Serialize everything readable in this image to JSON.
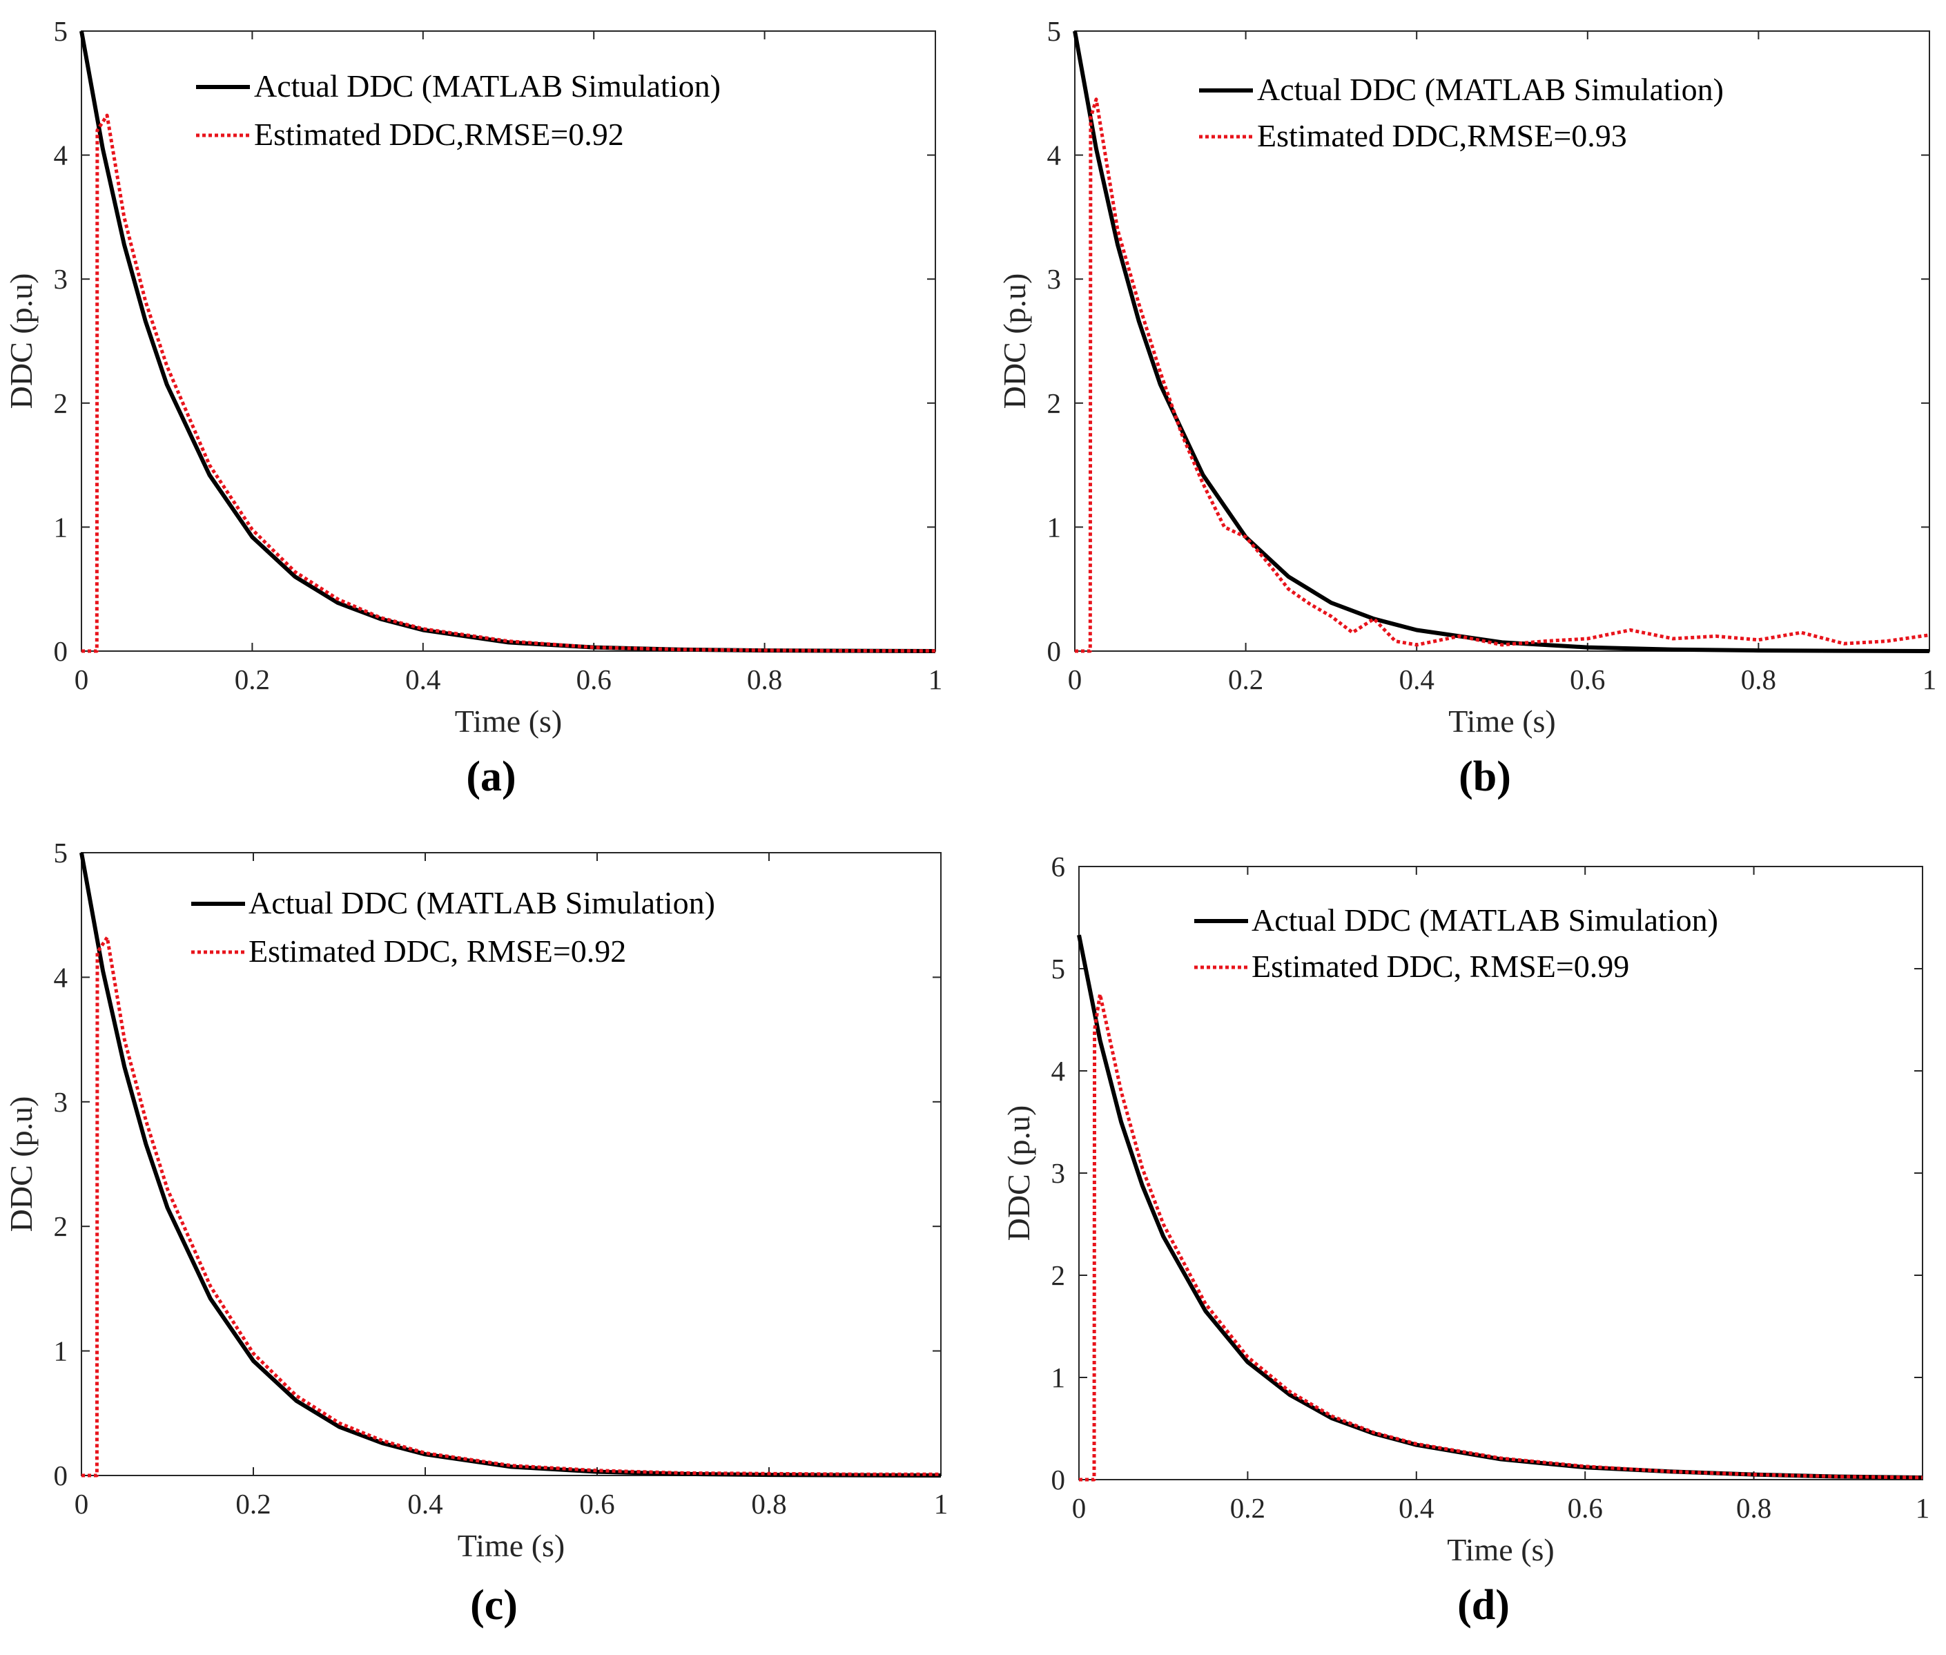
{
  "chart_data": [
    {
      "panel": "(a)",
      "type": "line",
      "title": "",
      "xlabel": "Time (s)",
      "ylabel": "DDC (p.u)",
      "xlim": [
        0,
        1
      ],
      "ylim": [
        0,
        5
      ],
      "xticks": [
        "0",
        "0.2",
        "0.4",
        "0.6",
        "0.8",
        "1"
      ],
      "yticks": [
        "0",
        "1",
        "2",
        "3",
        "4",
        "5"
      ],
      "legend_position": "top-right",
      "series": [
        {
          "name": "Actual DDC (MATLAB Simulation)",
          "style": "solid",
          "color": "#000000",
          "x": [
            0,
            0.025,
            0.05,
            0.075,
            0.1,
            0.15,
            0.2,
            0.25,
            0.3,
            0.35,
            0.4,
            0.5,
            0.6,
            0.7,
            0.8,
            0.9,
            1.0
          ],
          "y": [
            5.0,
            4.05,
            3.28,
            2.66,
            2.15,
            1.42,
            0.92,
            0.6,
            0.39,
            0.26,
            0.17,
            0.07,
            0.03,
            0.012,
            0.005,
            0.002,
            0.0
          ]
        },
        {
          "name": "Estimated DDC,RMSE=0.92",
          "style": "dotted",
          "color": "#e8141c",
          "x": [
            0,
            0.018,
            0.0185,
            0.03,
            0.05,
            0.075,
            0.1,
            0.15,
            0.2,
            0.25,
            0.3,
            0.35,
            0.4,
            0.5,
            0.6,
            0.7,
            0.8,
            0.9,
            1.0
          ],
          "y": [
            0.0,
            0.0,
            4.2,
            4.32,
            3.5,
            2.82,
            2.3,
            1.5,
            0.98,
            0.64,
            0.42,
            0.27,
            0.18,
            0.08,
            0.03,
            0.013,
            0.006,
            0.003,
            0.001
          ]
        }
      ]
    },
    {
      "panel": "(b)",
      "type": "line",
      "title": "",
      "xlabel": "Time (s)",
      "ylabel": "DDC (p.u)",
      "xlim": [
        0,
        1
      ],
      "ylim": [
        0,
        5
      ],
      "xticks": [
        "0",
        "0.2",
        "0.4",
        "0.6",
        "0.8",
        "1"
      ],
      "yticks": [
        "0",
        "1",
        "2",
        "3",
        "4",
        "5"
      ],
      "legend_position": "top-right",
      "series": [
        {
          "name": "Actual DDC (MATLAB Simulation)",
          "style": "solid",
          "color": "#000000",
          "x": [
            0,
            0.025,
            0.05,
            0.075,
            0.1,
            0.15,
            0.2,
            0.25,
            0.3,
            0.35,
            0.4,
            0.5,
            0.6,
            0.7,
            0.8,
            0.9,
            1.0
          ],
          "y": [
            5.0,
            4.05,
            3.28,
            2.66,
            2.15,
            1.42,
            0.92,
            0.6,
            0.39,
            0.26,
            0.17,
            0.07,
            0.03,
            0.012,
            0.005,
            0.002,
            0.0
          ]
        },
        {
          "name": "Estimated DDC,RMSE=0.93",
          "style": "dotted",
          "color": "#e8141c",
          "x": [
            0,
            0.018,
            0.0185,
            0.025,
            0.05,
            0.075,
            0.1,
            0.125,
            0.15,
            0.175,
            0.2,
            0.225,
            0.25,
            0.275,
            0.3,
            0.325,
            0.35,
            0.375,
            0.4,
            0.45,
            0.5,
            0.55,
            0.6,
            0.65,
            0.7,
            0.75,
            0.8,
            0.85,
            0.9,
            0.95,
            1.0
          ],
          "y": [
            0.0,
            0.0,
            4.3,
            4.45,
            3.4,
            2.8,
            2.25,
            1.75,
            1.35,
            1.0,
            0.92,
            0.72,
            0.5,
            0.38,
            0.28,
            0.15,
            0.26,
            0.08,
            0.05,
            0.12,
            0.05,
            0.08,
            0.1,
            0.17,
            0.1,
            0.12,
            0.09,
            0.15,
            0.06,
            0.08,
            0.13
          ]
        }
      ]
    },
    {
      "panel": "(c)",
      "type": "line",
      "title": "",
      "xlabel": "Time (s)",
      "ylabel": "DDC (p.u)",
      "xlim": [
        0,
        1
      ],
      "ylim": [
        0,
        5
      ],
      "xticks": [
        "0",
        "0.2",
        "0.4",
        "0.6",
        "0.8",
        "1"
      ],
      "yticks": [
        "0",
        "1",
        "2",
        "3",
        "4",
        "5"
      ],
      "legend_position": "top-right",
      "series": [
        {
          "name": "Actual DDC (MATLAB Simulation)",
          "style": "solid",
          "color": "#000000",
          "x": [
            0,
            0.025,
            0.05,
            0.075,
            0.1,
            0.15,
            0.2,
            0.25,
            0.3,
            0.35,
            0.4,
            0.5,
            0.6,
            0.7,
            0.8,
            0.9,
            1.0
          ],
          "y": [
            5.0,
            4.05,
            3.28,
            2.66,
            2.15,
            1.42,
            0.92,
            0.6,
            0.39,
            0.26,
            0.17,
            0.07,
            0.03,
            0.012,
            0.005,
            0.002,
            0.0
          ]
        },
        {
          "name": "Estimated DDC, RMSE=0.92",
          "style": "dotted",
          "color": "#e8141c",
          "x": [
            0,
            0.018,
            0.0185,
            0.03,
            0.05,
            0.075,
            0.1,
            0.15,
            0.2,
            0.25,
            0.3,
            0.35,
            0.4,
            0.5,
            0.6,
            0.7,
            0.8,
            0.9,
            1.0
          ],
          "y": [
            0.0,
            0.0,
            4.2,
            4.32,
            3.5,
            2.85,
            2.3,
            1.52,
            0.98,
            0.64,
            0.42,
            0.28,
            0.18,
            0.08,
            0.04,
            0.02,
            0.015,
            0.01,
            0.01
          ]
        }
      ]
    },
    {
      "panel": "(d)",
      "type": "line",
      "title": "",
      "xlabel": "Time (s)",
      "ylabel": "DDC (p.u)",
      "xlim": [
        0,
        1
      ],
      "ylim": [
        0,
        6
      ],
      "xticks": [
        "0",
        "0.2",
        "0.4",
        "0.6",
        "0.8",
        "1"
      ],
      "yticks": [
        "0",
        "1",
        "2",
        "3",
        "4",
        "5",
        "6"
      ],
      "legend_position": "top-right",
      "series": [
        {
          "name": "Actual DDC (MATLAB Simulation)",
          "style": "solid",
          "color": "#000000",
          "x": [
            0,
            0.025,
            0.05,
            0.075,
            0.1,
            0.15,
            0.2,
            0.25,
            0.3,
            0.35,
            0.4,
            0.5,
            0.6,
            0.7,
            0.8,
            0.9,
            1.0
          ],
          "y": [
            5.33,
            4.3,
            3.5,
            2.88,
            2.38,
            1.65,
            1.15,
            0.83,
            0.6,
            0.45,
            0.34,
            0.2,
            0.12,
            0.08,
            0.05,
            0.03,
            0.02
          ]
        },
        {
          "name": "Estimated DDC, RMSE=0.99",
          "style": "dotted",
          "color": "#e8141c",
          "x": [
            0,
            0.018,
            0.0185,
            0.025,
            0.05,
            0.075,
            0.1,
            0.15,
            0.2,
            0.25,
            0.3,
            0.35,
            0.4,
            0.5,
            0.6,
            0.7,
            0.8,
            0.9,
            1.0
          ],
          "y": [
            0.0,
            0.0,
            4.4,
            4.75,
            3.8,
            3.05,
            2.5,
            1.72,
            1.2,
            0.86,
            0.62,
            0.46,
            0.35,
            0.21,
            0.13,
            0.08,
            0.05,
            0.03,
            0.02
          ]
        }
      ]
    }
  ],
  "captions": [
    "(a)",
    "(b)",
    "(c)",
    "(d)"
  ]
}
